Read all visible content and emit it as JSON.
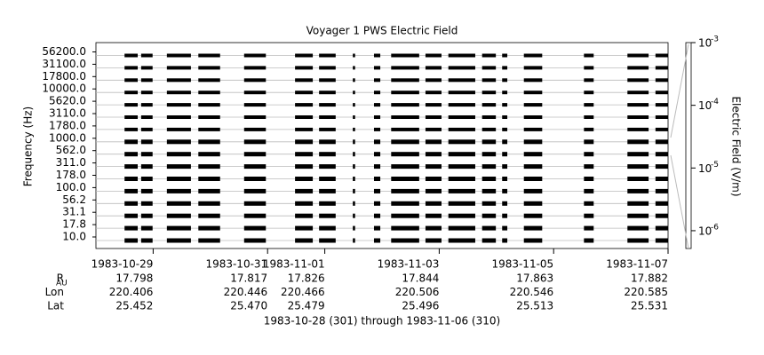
{
  "chart_data": {
    "type": "spectrogram",
    "title": "Voyager 1 PWS Electric Field",
    "ylabel": "Frequency (Hz)",
    "xlabel": "1983-10-28 (301) through 1983-11-06 (310)",
    "categories": [
      "10.0",
      "17.8",
      "31.1",
      "56.2",
      "100.0",
      "178.0",
      "311.0",
      "562.0",
      "1000.0",
      "1780.0",
      "3110.0",
      "5620.0",
      "10000.0",
      "17800.0",
      "31100.0",
      "56200.0"
    ],
    "xlim": [
      301,
      311
    ],
    "xticks": [
      {
        "value": 302,
        "label": "1983-10-29"
      },
      {
        "value": 304,
        "label": "1983-10-31"
      },
      {
        "value": 305,
        "label": "1983-11-01"
      },
      {
        "value": 307,
        "label": "1983-11-03"
      },
      {
        "value": 309,
        "label": "1983-11-05"
      },
      {
        "value": 311,
        "label": "1983-11-07"
      }
    ],
    "segments": [
      [
        301.5,
        301.73
      ],
      [
        301.79,
        301.99
      ],
      [
        302.24,
        302.66
      ],
      [
        302.79,
        303.17
      ],
      [
        303.59,
        303.97
      ],
      [
        304.48,
        304.79
      ],
      [
        304.9,
        305.19
      ],
      [
        305.49,
        305.53
      ],
      [
        305.86,
        305.97
      ],
      [
        306.16,
        306.65
      ],
      [
        306.76,
        307.04
      ],
      [
        307.16,
        307.63
      ],
      [
        307.75,
        307.99
      ],
      [
        308.1,
        308.19
      ],
      [
        308.48,
        308.8
      ],
      [
        309.53,
        309.7
      ],
      [
        310.29,
        310.66
      ],
      [
        310.78,
        311.0
      ]
    ],
    "color": "#000000",
    "ephemeris": [
      {
        "label": "R",
        "sub": "AU",
        "values": [
          "17.798",
          "17.817",
          "17.826",
          "17.844",
          "17.863",
          "17.882"
        ]
      },
      {
        "label": "Lon",
        "values": [
          "220.406",
          "220.446",
          "220.466",
          "220.506",
          "220.546",
          "220.585"
        ]
      },
      {
        "label": "Lat",
        "values": [
          "25.452",
          "25.470",
          "25.479",
          "25.496",
          "25.513",
          "25.531"
        ]
      }
    ],
    "colorbar": {
      "label": "Electric Field (V/m)",
      "log": true,
      "ylim": [
        5.2e-07,
        0.001
      ],
      "yticks": [
        {
          "value": 0.001,
          "label": "10",
          "exponent": "-3"
        },
        {
          "value": 0.0001,
          "label": "10",
          "exponent": "-4"
        },
        {
          "value": 1e-05,
          "label": "10",
          "exponent": "-5"
        },
        {
          "value": 1e-06,
          "label": "10",
          "exponent": "-6"
        }
      ]
    }
  }
}
